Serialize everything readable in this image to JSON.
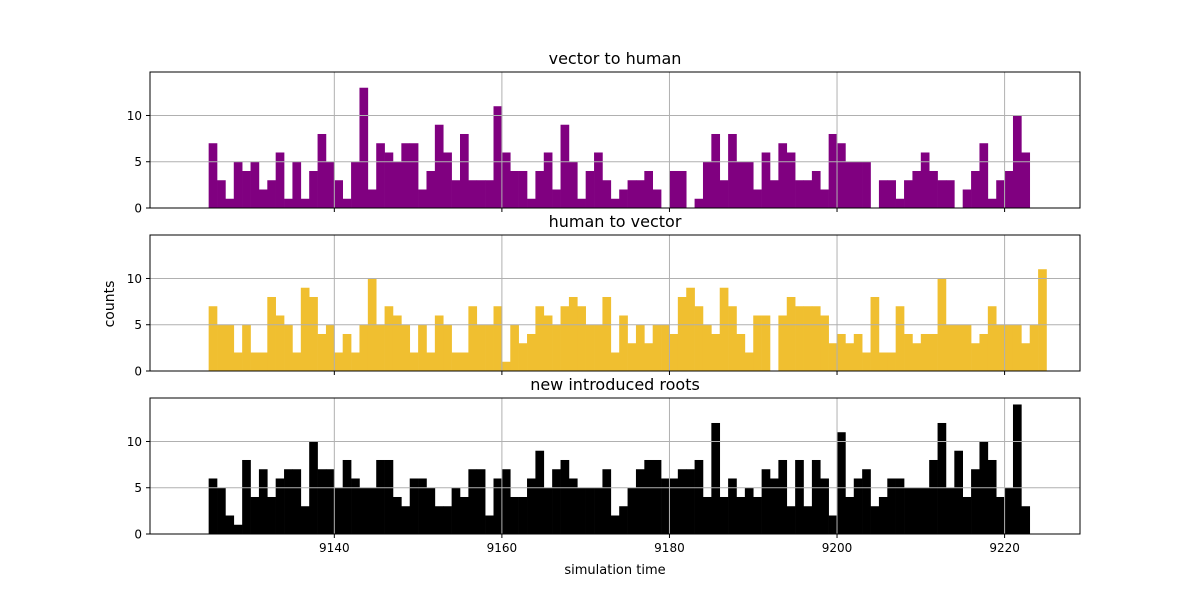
{
  "chart_data": [
    {
      "type": "bar",
      "title": "vector to human",
      "color": "#800080",
      "x_start": 9125,
      "bin_width": 1,
      "xlim": [
        9118,
        9229
      ],
      "ylim": [
        0,
        14.7
      ],
      "yticks": [
        0,
        5,
        10
      ],
      "values": [
        7,
        3,
        1,
        5,
        4,
        5,
        2,
        3,
        6,
        1,
        5,
        1,
        4,
        8,
        5,
        3,
        1,
        5,
        13,
        2,
        7,
        6,
        5,
        7,
        7,
        2,
        4,
        9,
        6,
        3,
        8,
        3,
        3,
        3,
        11,
        6,
        4,
        4,
        1,
        4,
        6,
        2,
        9,
        5,
        1,
        4,
        6,
        3,
        1,
        2,
        3,
        3,
        4,
        2,
        0,
        4,
        4,
        0,
        1,
        5,
        8,
        3,
        8,
        5,
        5,
        2,
        6,
        3,
        7,
        6,
        3,
        3,
        4,
        2,
        8,
        7,
        5,
        5,
        5,
        0,
        3,
        3,
        1,
        3,
        4,
        6,
        4,
        3,
        3,
        0,
        2,
        4,
        7,
        1,
        3,
        4,
        10,
        6
      ]
    },
    {
      "type": "bar",
      "title": "human to vector",
      "color": "#f0bf30",
      "x_start": 9125,
      "bin_width": 1,
      "xlim": [
        9118,
        9229
      ],
      "ylim": [
        0,
        14.7
      ],
      "yticks": [
        0,
        5,
        10
      ],
      "values": [
        7,
        5,
        5,
        2,
        5,
        2,
        2,
        8,
        6,
        5,
        2,
        9,
        8,
        4,
        5,
        2,
        4,
        2,
        5,
        10,
        5,
        7,
        6,
        5,
        2,
        5,
        2,
        6,
        5,
        2,
        2,
        7,
        5,
        5,
        7,
        1,
        5,
        3,
        4,
        7,
        6,
        5,
        7,
        8,
        7,
        5,
        5,
        8,
        2,
        6,
        3,
        5,
        3,
        5,
        5,
        4,
        8,
        9,
        7,
        5,
        4,
        9,
        7,
        4,
        2,
        6,
        6,
        0,
        6,
        8,
        7,
        7,
        7,
        6,
        3,
        4,
        3,
        4,
        2,
        8,
        2,
        2,
        7,
        4,
        3,
        4,
        4,
        10,
        5,
        5,
        5,
        3,
        4,
        7,
        5,
        5,
        5,
        3,
        5,
        11
      ]
    },
    {
      "type": "bar",
      "title": "new introduced roots",
      "color": "#000000",
      "xlabel": "simulation time",
      "x_start": 9125,
      "bin_width": 1,
      "xlim": [
        9118,
        9229
      ],
      "ylim": [
        0,
        14.7
      ],
      "yticks": [
        0,
        5,
        10
      ],
      "xticks": [
        9140,
        9160,
        9180,
        9200,
        9220
      ],
      "values": [
        6,
        5,
        2,
        1,
        8,
        4,
        7,
        4,
        6,
        7,
        7,
        3,
        10,
        7,
        7,
        5,
        8,
        6,
        5,
        5,
        8,
        8,
        4,
        3,
        6,
        6,
        5,
        3,
        3,
        5,
        4,
        7,
        7,
        2,
        6,
        7,
        4,
        4,
        6,
        9,
        5,
        7,
        8,
        6,
        5,
        5,
        5,
        7,
        2,
        3,
        5,
        7,
        8,
        8,
        6,
        6,
        7,
        7,
        8,
        4,
        12,
        4,
        6,
        4,
        5,
        4,
        7,
        6,
        8,
        3,
        8,
        3,
        8,
        6,
        2,
        11,
        4,
        6,
        7,
        3,
        4,
        6,
        6,
        5,
        5,
        5,
        8,
        12,
        5,
        9,
        4,
        7,
        10,
        8,
        4,
        5,
        14,
        3
      ]
    }
  ],
  "ylabel": "counts"
}
